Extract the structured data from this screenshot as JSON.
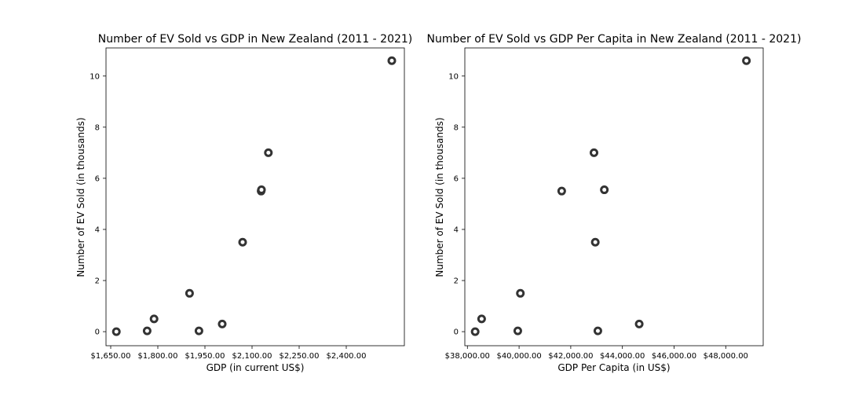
{
  "chart_data": [
    {
      "type": "scatter",
      "title": "Number of EV Sold vs GDP in New Zealand (2011 - 2021)",
      "xlabel": "GDP (in current US$)",
      "ylabel": "Number of EV Sold (in thousands)",
      "xlim": [
        1635,
        2585
      ],
      "ylim": [
        -0.55,
        11.1
      ],
      "xticks": [
        1650,
        1800,
        1950,
        2100,
        2250,
        2400
      ],
      "xtick_labels": [
        "$1,650.00",
        "$1,800.00",
        "$1,950.00",
        "$2,100.00",
        "$2,250.00",
        "$2,400.00"
      ],
      "yticks": [
        0,
        2,
        4,
        6,
        8,
        10
      ],
      "ytick_labels": [
        "0",
        "2",
        "4",
        "6",
        "8",
        "10"
      ],
      "marker_color": "#333333",
      "points": [
        {
          "x": 1668,
          "y": 0.0
        },
        {
          "x": 1766,
          "y": 0.03
        },
        {
          "x": 1788,
          "y": 0.5
        },
        {
          "x": 1931,
          "y": 0.03
        },
        {
          "x": 1901,
          "y": 1.5
        },
        {
          "x": 2005,
          "y": 0.3
        },
        {
          "x": 2070,
          "y": 3.5
        },
        {
          "x": 2129,
          "y": 5.5
        },
        {
          "x": 2130,
          "y": 5.55
        },
        {
          "x": 2152,
          "y": 7.0
        },
        {
          "x": 2545,
          "y": 10.6
        }
      ]
    },
    {
      "type": "scatter",
      "title": "Number of EV Sold vs GDP Per Capita in New Zealand (2011 - 2021)",
      "xlabel": "GDP Per Capita (in US$)",
      "ylabel": "Number of EV Sold (in thousands)",
      "xlim": [
        37900,
        49450
      ],
      "ylim": [
        -0.55,
        11.1
      ],
      "xticks": [
        38000,
        40000,
        42000,
        44000,
        46000,
        48000
      ],
      "xtick_labels": [
        "$38,000.00",
        "$40,000.00",
        "$42,000.00",
        "$44,000.00",
        "$46,000.00",
        "$48,000.00"
      ],
      "yticks": [
        0,
        2,
        4,
        6,
        8,
        10
      ],
      "ytick_labels": [
        "0",
        "2",
        "4",
        "6",
        "8",
        "10"
      ],
      "marker_color": "#333333",
      "points": [
        {
          "x": 38300,
          "y": 0.0
        },
        {
          "x": 38550,
          "y": 0.5
        },
        {
          "x": 39950,
          "y": 0.03
        },
        {
          "x": 40050,
          "y": 1.5
        },
        {
          "x": 41650,
          "y": 5.5
        },
        {
          "x": 42900,
          "y": 7.0
        },
        {
          "x": 42950,
          "y": 3.5
        },
        {
          "x": 43050,
          "y": 0.03
        },
        {
          "x": 43300,
          "y": 5.55
        },
        {
          "x": 44650,
          "y": 0.3
        },
        {
          "x": 48800,
          "y": 10.6
        }
      ]
    }
  ]
}
